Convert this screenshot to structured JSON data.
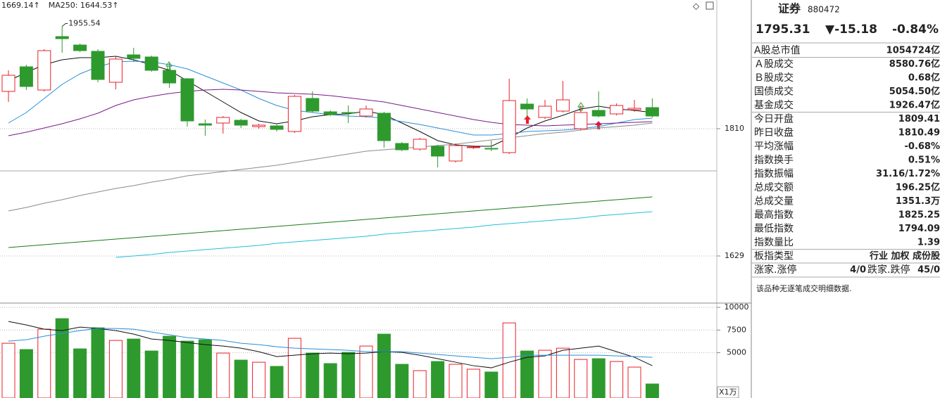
{
  "header": {
    "items": [
      {
        "text": "1669.14",
        "arrow": "↑",
        "color": "#1a9a1a"
      },
      {
        "text": "MA250: 1644.53",
        "arrow": "↑",
        "color": "#14a0b8"
      }
    ]
  },
  "chart_data": [
    {
      "type": "candlestick",
      "ylim": [
        1563,
        1993
      ],
      "yticks": [
        1810,
        1629
      ],
      "grid": true,
      "up_color": "#e8202a",
      "down_color": "#2e9a2e",
      "open": [
        1863,
        1898,
        1865,
        1941,
        1929,
        1920,
        1876,
        1915,
        1912,
        1893,
        1881,
        1817,
        1818,
        1822,
        1813,
        1814,
        1806,
        1853,
        1834,
        1833,
        1828,
        1832,
        1789,
        1781,
        1785,
        1764,
        1783,
        1782,
        1776,
        1845,
        1826,
        1835,
        1810,
        1836,
        1831,
        1837,
        1840
      ],
      "high": [
        1893,
        1901,
        1923,
        1955.54,
        1931,
        1923,
        1913,
        1925,
        1914,
        1903,
        1882,
        1823,
        1828,
        1824,
        1817,
        1816,
        1858,
        1863,
        1836,
        1843,
        1843,
        1834,
        1791,
        1797,
        1787,
        1789,
        1786,
        1793,
        1881,
        1853,
        1851,
        1878,
        1843,
        1863,
        1846,
        1851,
        1853
      ],
      "low": [
        1848,
        1865,
        1863,
        1918,
        1919,
        1876,
        1866,
        1905,
        1891,
        1868,
        1813,
        1800,
        1803,
        1811,
        1810,
        1806,
        1804,
        1833,
        1828,
        1818,
        1826,
        1783,
        1778,
        1779,
        1755,
        1762,
        1781,
        1778,
        1774,
        1828,
        1824,
        1833,
        1808,
        1826,
        1829,
        1834,
        1826
      ],
      "close": [
        1886,
        1870,
        1921,
        1938,
        1921,
        1880,
        1909,
        1910,
        1893,
        1875,
        1821,
        1815,
        1826,
        1815,
        1815,
        1809,
        1856,
        1835,
        1830,
        1832,
        1838,
        1793,
        1780,
        1795,
        1771,
        1786,
        1784,
        1781,
        1850,
        1838,
        1842,
        1851,
        1833,
        1828,
        1843,
        1839,
        1828
      ],
      "series": [
        {
          "color": "#111111",
          "values": [
            1878,
            1890,
            1901,
            1908,
            1911,
            1911,
            1913,
            1908,
            1901,
            1893,
            1878,
            1863,
            1848,
            1833,
            1821,
            1817,
            1821,
            1827,
            1830,
            1831,
            1835,
            1830,
            1818,
            1806,
            1793,
            1787,
            1785,
            1785,
            1797,
            1811,
            1821,
            1829,
            1838,
            1842,
            1838,
            1836,
            1833
          ]
        },
        {
          "color": "#2a8fd8",
          "values": [
            1818,
            1833,
            1853,
            1873,
            1888,
            1898,
            1905,
            1906,
            1905,
            1901,
            1895,
            1885,
            1875,
            1865,
            1853,
            1843,
            1836,
            1833,
            1830,
            1828,
            1827,
            1825,
            1820,
            1816,
            1811,
            1806,
            1801,
            1801,
            1803,
            1806,
            1807,
            1808,
            1810,
            1813,
            1818,
            1823,
            1825
          ]
        },
        {
          "color": "#7a1a8a",
          "values": [
            1800,
            1805,
            1811,
            1817,
            1824,
            1832,
            1843,
            1851,
            1856,
            1860,
            1863,
            1865,
            1866,
            1865,
            1863,
            1861,
            1860,
            1859,
            1857,
            1854,
            1851,
            1848,
            1843,
            1838,
            1833,
            1828,
            1823,
            1819,
            1816,
            1815,
            1814,
            1815,
            1816,
            1817,
            1818,
            1819,
            1820
          ]
        },
        {
          "color": "#8a8a8a",
          "values": [
            1693,
            1698,
            1704,
            1709,
            1715,
            1720,
            1725,
            1729,
            1734,
            1738,
            1743,
            1746,
            1749,
            1752,
            1755,
            1758,
            1762,
            1766,
            1770,
            1774,
            1778,
            1780,
            1782,
            1784,
            1786,
            1788,
            1791,
            1794,
            1797,
            1800,
            1803,
            1805,
            1808,
            1811,
            1813,
            1815,
            1818
          ]
        },
        {
          "color": "#1a7a1a",
          "values": [
            1641,
            1643,
            1645,
            1647,
            1649,
            1651,
            1653,
            1655,
            1657,
            1659,
            1661,
            1663,
            1665,
            1667,
            1669,
            1671,
            1673,
            1675,
            1677,
            1679,
            1681,
            1683,
            1685,
            1687,
            1689,
            1691,
            1693,
            1695,
            1697,
            1699,
            1701,
            1703,
            1705,
            1707,
            1709,
            1711,
            1713
          ]
        },
        {
          "color": "#22c0d8",
          "values": [
            null,
            null,
            null,
            null,
            null,
            null,
            1627,
            1629,
            1631,
            1634,
            1636,
            1638,
            1640,
            1642,
            1644,
            1647,
            1649,
            1651,
            1653,
            1655,
            1657,
            1660,
            1662,
            1664,
            1666,
            1668,
            1670,
            1673,
            1675,
            1677,
            1679,
            1681,
            1683,
            1686,
            1688,
            1690,
            1692
          ]
        }
      ]
    },
    {
      "type": "bar",
      "ylim": [
        0,
        10400
      ],
      "yticks": [
        10000,
        7500,
        5000
      ],
      "grid": true,
      "unit": "X1万",
      "values": [
        6045,
        5350,
        7600,
        8760,
        5425,
        7750,
        6355,
        6510,
        5190,
        6820,
        6280,
        6430,
        4960,
        4185,
        3950,
        3490,
        6590,
        4960,
        3800,
        5040,
        5735,
        7050,
        3720,
        3020,
        4030,
        3720,
        3180,
        2870,
        8290,
        5190,
        5270,
        5500,
        4260,
        4340,
        4030,
        3410,
        1550
      ],
      "series": [
        {
          "color": "#111111",
          "values": [
            8448,
            8060,
            7595,
            7440,
            7828,
            7673,
            7440,
            7053,
            6510,
            6355,
            6123,
            5890,
            5735,
            5503,
            5115,
            4573,
            4728,
            4883,
            4960,
            4883,
            4960,
            5115,
            5038,
            4728,
            4340,
            3953,
            3565,
            3333,
            3953,
            4495,
            4650,
            5270,
            5503,
            5735,
            5115,
            4495,
            3565
          ]
        },
        {
          "color": "#2a8fd8",
          "values": [
            6278,
            6433,
            6820,
            7130,
            7440,
            7673,
            7673,
            7595,
            7285,
            6975,
            6665,
            6510,
            6355,
            6045,
            5890,
            5658,
            5503,
            5425,
            5348,
            5270,
            5115,
            5115,
            5115,
            4960,
            4805,
            4650,
            4495,
            4340,
            4495,
            4728,
            4728,
            4728,
            4728,
            4728,
            4650,
            4573,
            4495
          ]
        }
      ]
    }
  ],
  "panel": {
    "name": "证券",
    "code": "880472",
    "quote": [
      {
        "text": "1795.31",
        "color": "#1a9a1a"
      },
      {
        "text": "▼-15.18",
        "color": "#1a9a1a"
      },
      {
        "text": "-0.84%",
        "color": "#1a9a1a"
      }
    ],
    "groups": [
      [
        {
          "label": "A股总市值",
          "value": "1054724亿",
          "color": "#222222"
        }
      ],
      [
        {
          "label": "Ａ股成交",
          "value": "8580.76亿",
          "color": "#222222"
        },
        {
          "label": "Ｂ股成交",
          "value": "0.68亿",
          "color": "#222222"
        },
        {
          "label": "国债成交",
          "value": "5054.50亿",
          "color": "#222222"
        },
        {
          "label": "基金成交",
          "value": "1926.47亿",
          "color": "#222222"
        }
      ],
      [
        {
          "label": "今日开盘",
          "value": "1809.41",
          "color": "#1a9a1a"
        },
        {
          "label": "昨日收盘",
          "value": "1810.49",
          "color": "#222222"
        },
        {
          "label": "平均涨幅",
          "value": "-0.68%",
          "color": "#1a9a1a"
        },
        {
          "label": "指数换手",
          "value": "0.51%",
          "color": "#222222"
        },
        {
          "label": "指数振幅",
          "value": "31.16/1.72%",
          "color": "#222222"
        },
        {
          "label": "总成交额",
          "value": "196.25亿",
          "color": "#222222"
        },
        {
          "label": "总成交量",
          "value": "1351.3万",
          "color": "#222222"
        },
        {
          "label": "最高指数",
          "value": "1825.25",
          "color": "#e8202a"
        },
        {
          "label": "最低指数",
          "value": "1794.09",
          "color": "#1a9a1a"
        },
        {
          "label": "指数量比",
          "value": "1.39",
          "color": "#e8202a"
        }
      ],
      [
        {
          "label": "板指类型",
          "value": "行业 加权 成份股",
          "color": "#444444"
        }
      ]
    ],
    "breadth": [
      {
        "text": "涨家.涨停",
        "color": "#222222"
      },
      {
        "text": "4/0",
        "color": "#e8202a"
      },
      {
        "text": "跌家.跌停",
        "color": "#222222"
      },
      {
        "text": "45/0",
        "color": "#1a9a1a"
      }
    ],
    "note": "该品种无逐笔成交明细数据."
  }
}
